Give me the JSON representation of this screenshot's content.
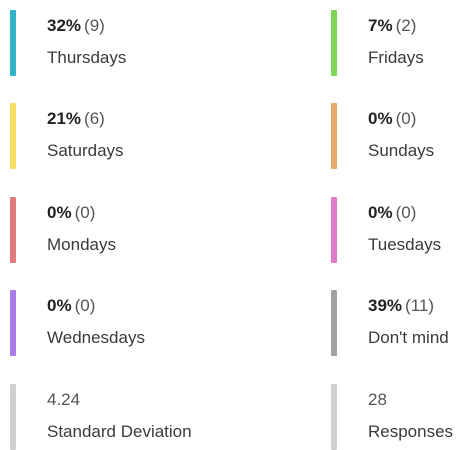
{
  "items": [
    {
      "percent": "32%",
      "count": "(9)",
      "label": "Thursdays",
      "color": "#2eb2c4"
    },
    {
      "percent": "7%",
      "count": "(2)",
      "label": "Fridays",
      "color": "#7fd656"
    },
    {
      "percent": "21%",
      "count": "(6)",
      "label": "Saturdays",
      "color": "#f8dc5e"
    },
    {
      "percent": "0%",
      "count": "(0)",
      "label": "Sundays",
      "color": "#e8aa6c"
    },
    {
      "percent": "0%",
      "count": "(0)",
      "label": "Mondays",
      "color": "#e07b7b"
    },
    {
      "percent": "0%",
      "count": "(0)",
      "label": "Tuesdays",
      "color": "#e07ccb"
    },
    {
      "percent": "0%",
      "count": "(0)",
      "label": "Wednesdays",
      "color": "#a97be6"
    },
    {
      "percent": "39%",
      "count": "(11)",
      "label": "Don't mind",
      "color": "#a0a0a0"
    }
  ],
  "stats": [
    {
      "value": "4.24",
      "label": "Standard Deviation"
    },
    {
      "value": "28",
      "label": "Responses"
    }
  ]
}
